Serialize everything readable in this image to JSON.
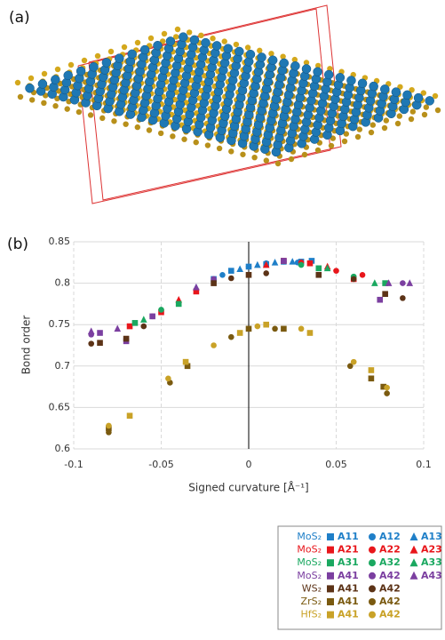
{
  "panel_a_label": "(a)",
  "chart_data": {
    "type": "scatter",
    "panel_label": "(b)",
    "xlabel": "Signed curvature  [Å⁻¹]",
    "ylabel": "Bond order",
    "xlim": [
      -0.1,
      0.1
    ],
    "xticks": [
      -0.1,
      -0.05,
      0,
      0.05,
      0.1
    ],
    "ylim": [
      0.6,
      0.85
    ],
    "yticks": [
      0.6,
      0.65,
      0.7,
      0.75,
      0.8,
      0.85
    ],
    "grid": true,
    "series": [
      {
        "group": "MoS₂",
        "name": "A11",
        "color": "#1f7fc8",
        "marker": "square",
        "x": [
          -0.02,
          -0.01,
          0,
          0.01,
          0.02,
          0.03,
          0.036
        ],
        "y": [
          0.805,
          0.815,
          0.82,
          0.823,
          0.826,
          0.826,
          0.827
        ]
      },
      {
        "group": "MoS₂",
        "name": "A12",
        "color": "#1f7fc8",
        "marker": "circle",
        "x": [
          -0.015,
          0,
          0.01,
          0.02,
          0.028
        ],
        "y": [
          0.81,
          0.82,
          0.824,
          0.826,
          0.825
        ]
      },
      {
        "group": "MoS₂",
        "name": "A13",
        "color": "#1f7fc8",
        "marker": "triangle",
        "x": [
          -0.03,
          -0.005,
          0.005,
          0.015,
          0.025
        ],
        "y": [
          0.795,
          0.817,
          0.822,
          0.825,
          0.826
        ]
      },
      {
        "group": "MoS₂",
        "name": "A21",
        "color": "#e8161b",
        "marker": "square",
        "x": [
          -0.068,
          -0.05,
          -0.03,
          0.02,
          0.035,
          0.06
        ],
        "y": [
          0.748,
          0.765,
          0.79,
          0.827,
          0.824,
          0.805
        ]
      },
      {
        "group": "MoS₂",
        "name": "A22",
        "color": "#e8161b",
        "marker": "circle",
        "x": [
          -0.055,
          0.03,
          0.05,
          0.065
        ],
        "y": [
          0.76,
          0.825,
          0.815,
          0.81
        ]
      },
      {
        "group": "MoS₂",
        "name": "A23",
        "color": "#e8161b",
        "marker": "triangle",
        "x": [
          -0.04,
          0.01,
          0.045
        ],
        "y": [
          0.78,
          0.822,
          0.82
        ]
      },
      {
        "group": "MoS₂",
        "name": "A31",
        "color": "#1aa860",
        "marker": "square",
        "x": [
          -0.065,
          -0.04,
          0.04,
          0.078
        ],
        "y": [
          0.752,
          0.775,
          0.818,
          0.8
        ]
      },
      {
        "group": "MoS₂",
        "name": "A32",
        "color": "#1aa860",
        "marker": "circle",
        "x": [
          -0.05,
          0.03,
          0.06
        ],
        "y": [
          0.768,
          0.822,
          0.808
        ]
      },
      {
        "group": "MoS₂",
        "name": "A33",
        "color": "#1aa860",
        "marker": "triangle",
        "x": [
          -0.06,
          0.045,
          0.072
        ],
        "y": [
          0.756,
          0.818,
          0.8
        ]
      },
      {
        "group": "MoS₂",
        "name": "A41",
        "color": "#7b3fa0",
        "marker": "square",
        "x": [
          -0.085,
          -0.07,
          -0.055,
          0.02,
          0.075
        ],
        "y": [
          0.74,
          0.73,
          0.76,
          0.827,
          0.78
        ]
      },
      {
        "group": "MoS₂",
        "name": "A42",
        "color": "#7b3fa0",
        "marker": "circle",
        "x": [
          -0.09,
          -0.02,
          0.088
        ],
        "y": [
          0.738,
          0.805,
          0.8
        ]
      },
      {
        "group": "MoS₂",
        "name": "A43",
        "color": "#7b3fa0",
        "marker": "triangle",
        "x": [
          -0.09,
          -0.075,
          -0.03,
          0.08,
          0.092
        ],
        "y": [
          0.742,
          0.745,
          0.795,
          0.8,
          0.8
        ]
      },
      {
        "group": "WS₂",
        "name": "A41",
        "color": "#5c3317",
        "marker": "square",
        "x": [
          -0.085,
          -0.07,
          -0.02,
          0,
          0.04,
          0.078
        ],
        "y": [
          0.728,
          0.733,
          0.8,
          0.81,
          0.81,
          0.787
        ]
      },
      {
        "group": "WS₂",
        "name": "A42",
        "color": "#5c3317",
        "marker": "circle",
        "x": [
          -0.09,
          -0.06,
          -0.01,
          0.01,
          0.06,
          0.088
        ],
        "y": [
          0.727,
          0.748,
          0.806,
          0.812,
          0.805,
          0.782
        ]
      },
      {
        "group": "ZrS₂",
        "name": "A41",
        "color": "#7a5a10",
        "marker": "square",
        "x": [
          -0.08,
          -0.035,
          0,
          0.02,
          0.07,
          0.077
        ],
        "y": [
          0.625,
          0.7,
          0.745,
          0.745,
          0.685,
          0.675
        ]
      },
      {
        "group": "ZrS₂",
        "name": "A42",
        "color": "#7a5a10",
        "marker": "circle",
        "x": [
          -0.08,
          -0.045,
          -0.01,
          0.015,
          0.058,
          0.079
        ],
        "y": [
          0.62,
          0.68,
          0.735,
          0.745,
          0.7,
          0.667
        ]
      },
      {
        "group": "HfS₂",
        "name": "A41",
        "color": "#c9a227",
        "marker": "square",
        "x": [
          -0.068,
          -0.036,
          -0.005,
          0.01,
          0.035,
          0.07
        ],
        "y": [
          0.64,
          0.705,
          0.74,
          0.75,
          0.74,
          0.695
        ]
      },
      {
        "group": "HfS₂",
        "name": "A42",
        "color": "#c9a227",
        "marker": "circle",
        "x": [
          -0.08,
          -0.046,
          -0.02,
          0.005,
          0.03,
          0.06,
          0.079
        ],
        "y": [
          0.628,
          0.685,
          0.725,
          0.748,
          0.745,
          0.705,
          0.674
        ]
      }
    ]
  }
}
